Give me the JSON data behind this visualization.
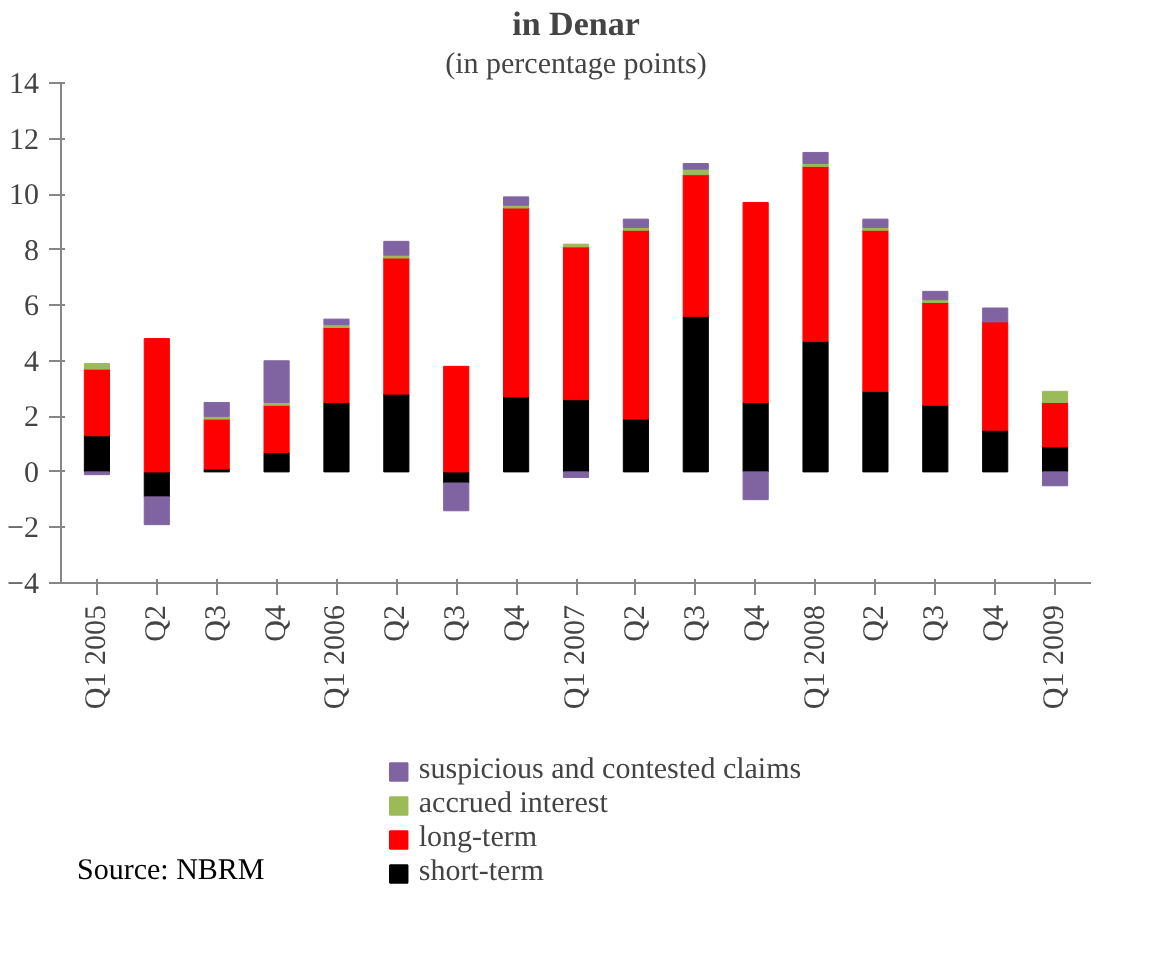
{
  "chart_data": {
    "type": "bar",
    "title": "in Denar",
    "subtitle": "(in percentage points)",
    "categories": [
      "Q1 2005",
      "Q2",
      "Q3",
      "Q4",
      "Q1 2006",
      "Q2",
      "Q3",
      "Q4",
      "Q1 2007",
      "Q2",
      "Q3",
      "Q4",
      "Q1 2008",
      "Q2",
      "Q3",
      "Q4",
      "Q1 2009"
    ],
    "stacked": true,
    "ylim": [
      -4,
      14
    ],
    "yticks": [
      -4,
      -2,
      0,
      2,
      4,
      6,
      8,
      10,
      12,
      14
    ],
    "grid": false,
    "legend": "bottom",
    "series": [
      {
        "name": "short-term",
        "color": "#000000",
        "values": [
          1.3,
          -0.9,
          0.1,
          0.7,
          2.5,
          2.8,
          -0.4,
          2.7,
          2.6,
          1.9,
          5.6,
          2.5,
          4.7,
          2.9,
          2.4,
          1.5,
          0.9
        ]
      },
      {
        "name": "long-term",
        "color": "#ff0000",
        "values": [
          2.4,
          4.8,
          1.8,
          1.7,
          2.7,
          4.9,
          3.8,
          6.8,
          5.5,
          6.8,
          5.1,
          7.2,
          6.3,
          5.8,
          3.7,
          3.9,
          1.6
        ]
      },
      {
        "name": "accrued interest",
        "color": "#9bbb59",
        "values": [
          0.2,
          null,
          0.1,
          0.1,
          0.1,
          0.1,
          null,
          0.1,
          0.1,
          0.1,
          0.2,
          null,
          0.1,
          0.1,
          0.1,
          null,
          0.4
        ]
      },
      {
        "name": "suspicious and contested claims",
        "color": "#8064a2",
        "values": [
          -0.1,
          -1.0,
          0.5,
          1.5,
          0.2,
          0.5,
          -1.0,
          0.3,
          -0.2,
          0.3,
          0.2,
          -1.0,
          0.4,
          0.3,
          0.3,
          0.5,
          -0.5
        ]
      }
    ],
    "annotations": [
      "Source: NBRM"
    ]
  }
}
